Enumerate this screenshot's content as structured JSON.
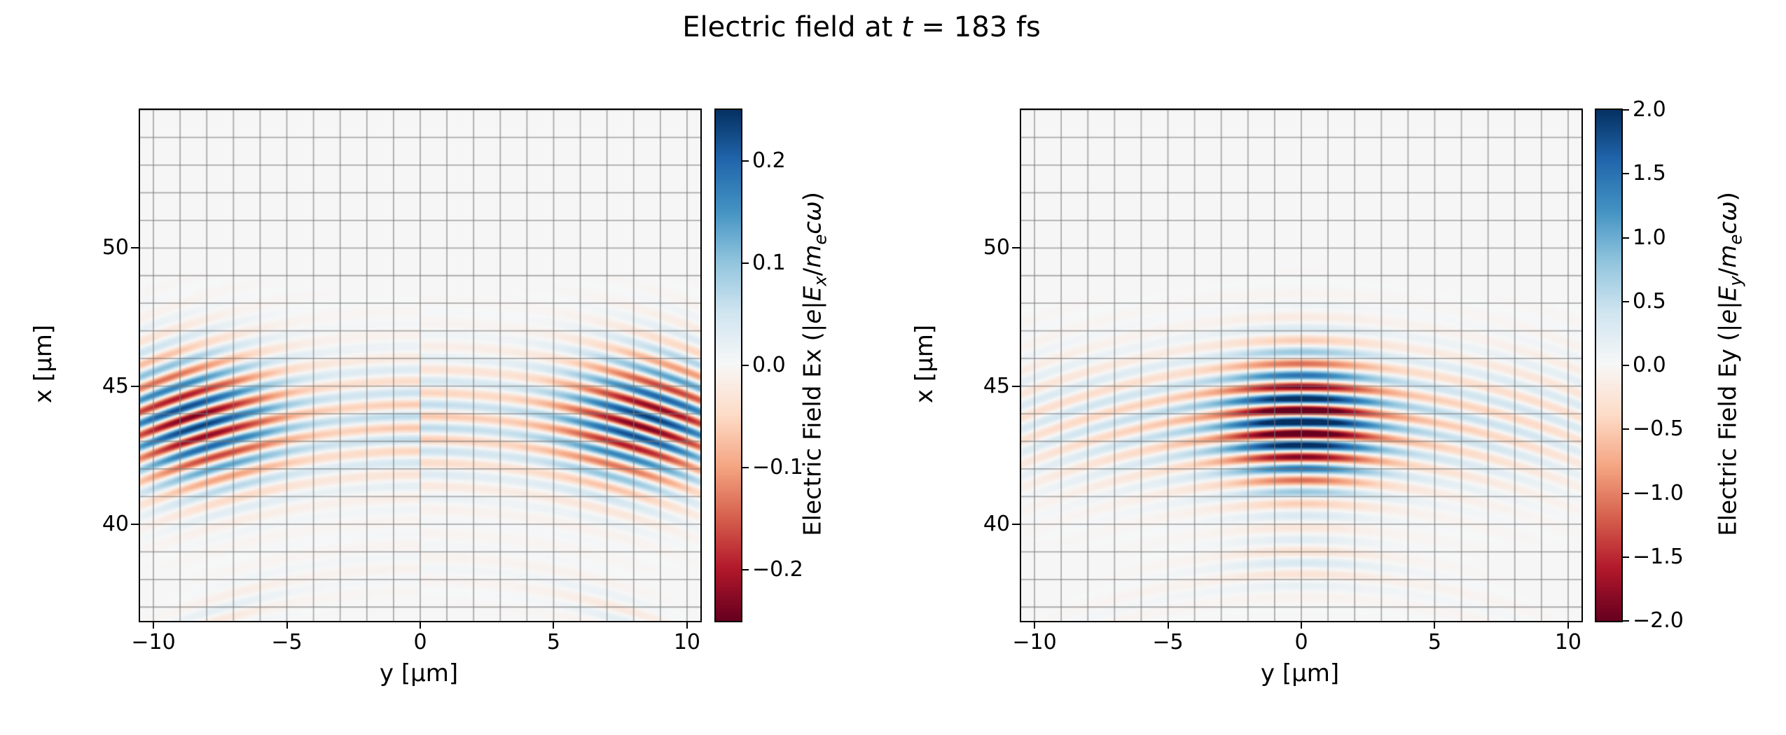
{
  "chart_data": {
    "type": "heatmap",
    "title_plain": "Electric field at t = 183 fs",
    "title_rich": [
      {
        "t": "Electric field at "
      },
      {
        "t": "t",
        "i": true
      },
      {
        "t": " = 183 fs"
      }
    ],
    "time_fs": 183,
    "x_axis": {
      "label": "y [μm]",
      "range": [
        -10.5,
        10.5
      ],
      "gridline_spacing_um": 1,
      "ticks": [
        {
          "v": -10,
          "label": "−10"
        },
        {
          "v": -5,
          "label": "−5"
        },
        {
          "v": 0,
          "label": "0"
        },
        {
          "v": 5,
          "label": "5"
        },
        {
          "v": 10,
          "label": "10"
        }
      ]
    },
    "y_axis": {
      "label": "x [μm]",
      "range": [
        36.5,
        55.0
      ],
      "gridline_spacing_um": 1,
      "ticks": [
        {
          "v": 40,
          "label": "40"
        },
        {
          "v": 45,
          "label": "45"
        },
        {
          "v": 50,
          "label": "50"
        }
      ]
    },
    "colormap": {
      "name": "RdBu",
      "stops": [
        "#67001f",
        "#b2182b",
        "#d6604d",
        "#f4a582",
        "#fddbc7",
        "#f7f7f7",
        "#d1e5f0",
        "#92c5de",
        "#4393c3",
        "#2166ac",
        "#053061"
      ]
    },
    "grid_color": "rgba(120,120,120,0.6)",
    "wave": {
      "wavelength_um": 0.85,
      "x0_um": 43.7,
      "sigma_x_um": 2.3,
      "curvature_R_um": 28,
      "trail_x_um": 38.6,
      "trail_sigma_um": 1.0,
      "trail_R_um": 14,
      "trail_amp": 0.12
    },
    "panels": [
      {
        "id": "ex",
        "name": "Ex",
        "vmax": 0.25,
        "amp": 0.24,
        "phase_offset": 1.5708,
        "odd": true,
        "env": {
          "type": "lobes",
          "center": 8.5,
          "width": 3.4,
          "core_amp": 0.28,
          "core_width": 4.5
        },
        "colorbar": {
          "label_plain": "Electric Field Ex (|e|Ex/mecω)",
          "label_rich": [
            {
              "t": "Electric Field Ex (|"
            },
            {
              "t": "e",
              "i": true
            },
            {
              "t": "|"
            },
            {
              "t": "E",
              "i": true
            },
            {
              "t": "x",
              "i": true,
              "sub": true
            },
            {
              "t": "/"
            },
            {
              "t": "m",
              "i": true
            },
            {
              "t": "e",
              "i": true,
              "sub": true
            },
            {
              "t": "c",
              "i": true
            },
            {
              "t": "ω",
              "i": true
            },
            {
              "t": ")"
            }
          ],
          "ticks": [
            {
              "v": 0.2,
              "label": "0.2"
            },
            {
              "v": 0.1,
              "label": "0.1"
            },
            {
              "v": 0.0,
              "label": "0.0"
            },
            {
              "v": -0.1,
              "label": "−0.1"
            },
            {
              "v": -0.2,
              "label": "−0.2"
            }
          ]
        }
      },
      {
        "id": "ey",
        "name": "Ey",
        "vmax": 2.0,
        "amp": 2.0,
        "phase_offset": 0,
        "odd": false,
        "env": {
          "type": "gauss",
          "w0": 2.6,
          "ped": 0.3,
          "wp": 13
        },
        "colorbar": {
          "label_plain": "Electric Field Ey (|e|Ey/mecω)",
          "label_rich": [
            {
              "t": "Electric Field Ey (|"
            },
            {
              "t": "e",
              "i": true
            },
            {
              "t": "|"
            },
            {
              "t": "E",
              "i": true
            },
            {
              "t": "y",
              "i": true,
              "sub": true
            },
            {
              "t": "/"
            },
            {
              "t": "m",
              "i": true
            },
            {
              "t": "e",
              "i": true,
              "sub": true
            },
            {
              "t": "c",
              "i": true
            },
            {
              "t": "ω",
              "i": true
            },
            {
              "t": ")"
            }
          ],
          "ticks": [
            {
              "v": 2.0,
              "label": "2.0"
            },
            {
              "v": 1.5,
              "label": "1.5"
            },
            {
              "v": 1.0,
              "label": "1.0"
            },
            {
              "v": 0.5,
              "label": "0.5"
            },
            {
              "v": 0.0,
              "label": "0.0"
            },
            {
              "v": -0.5,
              "label": "−0.5"
            },
            {
              "v": -1.0,
              "label": "−1.0"
            },
            {
              "v": -1.5,
              "label": "−1.5"
            },
            {
              "v": -2.0,
              "label": "−2.0"
            }
          ]
        }
      }
    ]
  }
}
